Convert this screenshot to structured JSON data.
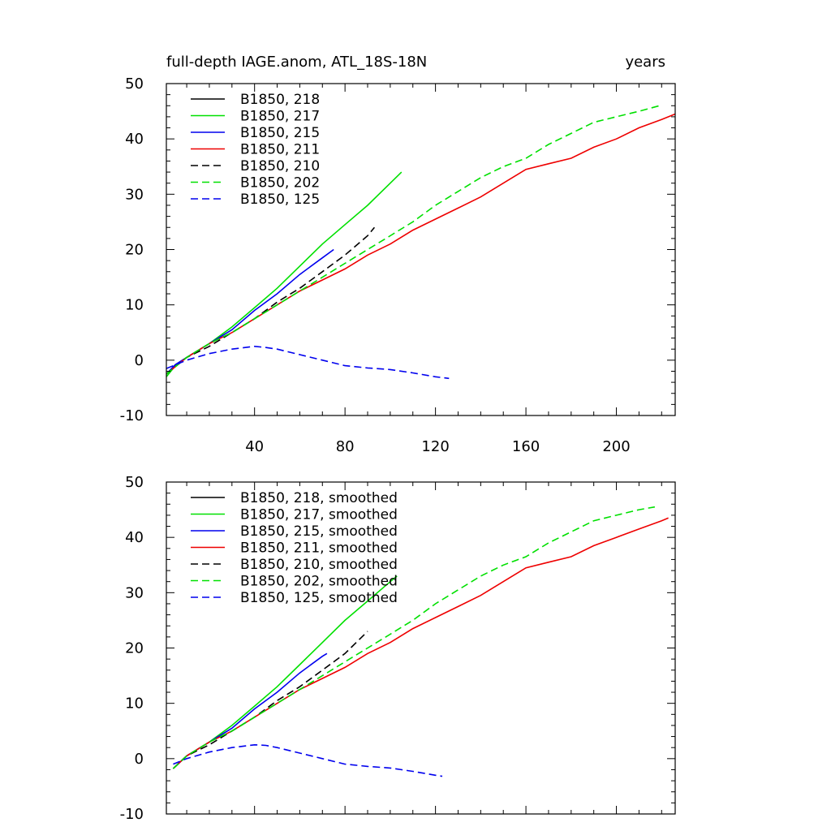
{
  "chart_data": [
    {
      "type": "line",
      "title": "full-depth IAGE.anom, ATL_18S-18N",
      "units_label": "years",
      "xlim": [
        1,
        226
      ],
      "ylim": [
        -10,
        50
      ],
      "yticks": [
        -10,
        0,
        10,
        20,
        30,
        40,
        50
      ],
      "yticks_labels": [
        "-10",
        "0",
        "10",
        "20",
        "30",
        "40",
        "50"
      ],
      "xticks": [
        40,
        80,
        120,
        160,
        200
      ],
      "xticks_labels": [
        "40",
        "80",
        "120",
        "160",
        "200"
      ],
      "legend_position": "top-left",
      "grid": false,
      "series": [
        {
          "name": "B1850, 218",
          "color": "#000000",
          "dash": "solid",
          "x": [],
          "y": []
        },
        {
          "name": "B1850, 217",
          "color": "#00e000",
          "dash": "solid",
          "x": [
            1,
            5,
            10,
            20,
            30,
            40,
            50,
            60,
            70,
            80,
            90,
            100,
            105
          ],
          "y": [
            -3,
            -1,
            0.5,
            3,
            6,
            9.5,
            13,
            17,
            21,
            24.5,
            28,
            32,
            34
          ]
        },
        {
          "name": "B1850, 215",
          "color": "#0000ee",
          "dash": "solid",
          "x": [
            1,
            5,
            10,
            20,
            30,
            40,
            50,
            60,
            70,
            75
          ],
          "y": [
            -2.5,
            -0.8,
            0.5,
            3,
            5.5,
            9,
            12,
            15.5,
            18.5,
            20
          ]
        },
        {
          "name": "B1850, 211",
          "color": "#ee0000",
          "dash": "solid",
          "x": [
            1,
            10,
            20,
            30,
            40,
            50,
            60,
            70,
            80,
            90,
            100,
            110,
            120,
            130,
            140,
            150,
            160,
            170,
            180,
            190,
            200,
            210,
            220,
            226
          ],
          "y": [
            -2.5,
            0.5,
            3,
            5,
            7.5,
            10,
            12.5,
            14.5,
            16.5,
            19,
            21,
            23.5,
            25.5,
            27.5,
            29.5,
            32,
            34.5,
            35.5,
            36.5,
            38.5,
            40,
            42,
            43.5,
            44.5
          ]
        },
        {
          "name": "B1850, 210",
          "color": "#000000",
          "dash": "dashed",
          "x": [
            1,
            10,
            20,
            30,
            40,
            50,
            60,
            70,
            80,
            90,
            93
          ],
          "y": [
            -2.5,
            0.5,
            2.5,
            5,
            7.5,
            10.5,
            13,
            16,
            19,
            22.5,
            24
          ]
        },
        {
          "name": "B1850, 202",
          "color": "#00e000",
          "dash": "dashed",
          "x": [
            1,
            10,
            20,
            30,
            40,
            50,
            60,
            70,
            80,
            90,
            100,
            110,
            120,
            130,
            140,
            150,
            160,
            170,
            180,
            190,
            200,
            210,
            219
          ],
          "y": [
            -2.5,
            0.5,
            3,
            5,
            7.5,
            10,
            12.5,
            15,
            17.5,
            20,
            22.5,
            25,
            28,
            30.5,
            33,
            35,
            36.5,
            39,
            41,
            43,
            44,
            45,
            46
          ]
        },
        {
          "name": "B1850, 125",
          "color": "#0000ee",
          "dash": "dashed",
          "x": [
            1,
            10,
            20,
            30,
            40,
            45,
            50,
            60,
            70,
            80,
            90,
            100,
            110,
            120,
            126
          ],
          "y": [
            -1.5,
            0,
            1.2,
            2,
            2.5,
            2.3,
            2,
            1,
            0,
            -1,
            -1.4,
            -1.7,
            -2.3,
            -3,
            -3.3
          ]
        }
      ]
    },
    {
      "type": "line",
      "title": "",
      "xlim": [
        1,
        226
      ],
      "ylim": [
        -10,
        50
      ],
      "yticks": [
        -10,
        0,
        10,
        20,
        30,
        40,
        50
      ],
      "yticks_labels": [
        "-10",
        "0",
        "10",
        "20",
        "30",
        "40",
        "50"
      ],
      "xticks": [
        40,
        80,
        120,
        160,
        200
      ],
      "xticks_labels": [],
      "legend_position": "top-left",
      "grid": false,
      "series": [
        {
          "name": "B1850, 218, smoothed",
          "color": "#000000",
          "dash": "solid",
          "x": [],
          "y": []
        },
        {
          "name": "B1850, 217, smoothed",
          "color": "#00e000",
          "dash": "solid",
          "x": [
            4,
            10,
            20,
            30,
            40,
            50,
            60,
            70,
            80,
            90,
            100,
            103
          ],
          "y": [
            -1.8,
            0.5,
            3,
            6,
            9.5,
            13,
            17,
            21,
            25,
            28.5,
            32,
            33
          ]
        },
        {
          "name": "B1850, 215, smoothed",
          "color": "#0000ee",
          "dash": "solid",
          "x": [
            4,
            10,
            20,
            30,
            40,
            50,
            60,
            70,
            72
          ],
          "y": [
            -1.8,
            0.5,
            3,
            5.5,
            9,
            12,
            15.5,
            18.5,
            19
          ]
        },
        {
          "name": "B1850, 211, smoothed",
          "color": "#ee0000",
          "dash": "solid",
          "x": [
            4,
            10,
            20,
            30,
            40,
            50,
            60,
            70,
            80,
            90,
            100,
            110,
            120,
            130,
            140,
            150,
            160,
            170,
            180,
            190,
            200,
            210,
            220,
            223
          ],
          "y": [
            -1.8,
            0.5,
            3,
            5,
            7.5,
            10,
            12.5,
            14.5,
            16.5,
            19,
            21,
            23.5,
            25.5,
            27.5,
            29.5,
            32,
            34.5,
            35.5,
            36.5,
            38.5,
            40,
            41.5,
            43,
            43.5
          ]
        },
        {
          "name": "B1850, 210, smoothed",
          "color": "#000000",
          "dash": "dashed",
          "x": [
            4,
            10,
            20,
            30,
            40,
            50,
            60,
            70,
            80,
            90
          ],
          "y": [
            -1.8,
            0.5,
            2.5,
            5,
            7.5,
            10.5,
            13,
            16,
            19,
            23
          ]
        },
        {
          "name": "B1850, 202, smoothed",
          "color": "#00e000",
          "dash": "dashed",
          "x": [
            4,
            10,
            20,
            30,
            40,
            50,
            60,
            70,
            80,
            90,
            100,
            110,
            120,
            130,
            140,
            150,
            160,
            170,
            180,
            190,
            200,
            210,
            217
          ],
          "y": [
            -1.8,
            0.5,
            3,
            5,
            7.5,
            10,
            12.5,
            15,
            17.5,
            20,
            22.5,
            25,
            28,
            30.5,
            33,
            35,
            36.5,
            39,
            41,
            43,
            44,
            45,
            45.5
          ]
        },
        {
          "name": "B1850, 125, smoothed",
          "color": "#0000ee",
          "dash": "dashed",
          "x": [
            4,
            10,
            20,
            30,
            40,
            45,
            50,
            60,
            70,
            80,
            90,
            100,
            110,
            120,
            123
          ],
          "y": [
            -1,
            0,
            1.2,
            2,
            2.5,
            2.4,
            2,
            1,
            0,
            -1,
            -1.4,
            -1.7,
            -2.3,
            -3,
            -3.2
          ]
        }
      ]
    }
  ]
}
